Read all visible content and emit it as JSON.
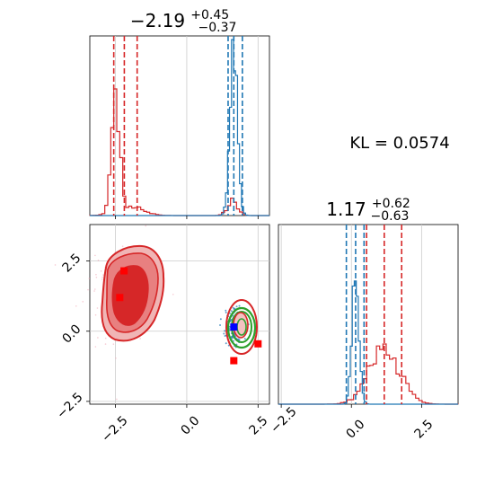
{
  "chart_data": [
    {
      "panel": "marginal-x",
      "type": "histogram",
      "title": {
        "base": "−2.19",
        "sup": "+0.45",
        "sub": "−0.37"
      },
      "xlim": [
        -3.4,
        2.9
      ],
      "series": [
        {
          "color": "#d62728",
          "peaks": [
            [
              -2.5,
              0.14,
              1.0
            ],
            [
              1.6,
              0.18,
              0.12
            ]
          ],
          "quantile_lines": [
            -2.56,
            -2.19,
            -1.74
          ]
        },
        {
          "color": "#1f77b4",
          "peaks": [
            [
              1.65,
              0.13,
              1.45
            ]
          ],
          "quantile_lines": [
            1.45,
            1.65,
            1.95
          ]
        }
      ]
    },
    {
      "panel": "marginal-y",
      "type": "histogram",
      "title": {
        "base": "1.17",
        "sup": "+0.62",
        "sub": "−0.63"
      },
      "xlim": [
        -2.6,
        3.8
      ],
      "series": [
        {
          "color": "#d62728",
          "peaks": [
            [
              1.17,
              0.55,
              0.38
            ]
          ],
          "quantile_lines": [
            0.54,
            1.17,
            1.79
          ]
        },
        {
          "color": "#1f77b4",
          "peaks": [
            [
              0.15,
              0.12,
              1.0
            ]
          ],
          "quantile_lines": [
            -0.18,
            0.15,
            0.45
          ]
        }
      ]
    },
    {
      "panel": "joint",
      "type": "scatter",
      "xlim": [
        -3.4,
        2.9
      ],
      "ylim": [
        -2.6,
        3.8
      ],
      "red_markers": [
        [
          -2.2,
          2.15
        ],
        [
          -2.35,
          1.2
        ],
        [
          1.65,
          -1.05
        ],
        [
          2.5,
          -0.45
        ]
      ],
      "blue_markers": [
        [
          1.65,
          0.15
        ]
      ],
      "x_ticks": [
        "−2.5",
        "0.0",
        "2.5"
      ],
      "y_ticks": [
        "2.5",
        "0.0",
        "−2.5"
      ]
    }
  ],
  "annotation": {
    "kl_text": "KL = 0.0574"
  },
  "bottom_ticks": [
    "−2.5",
    "0.0",
    "2.5"
  ],
  "colors": {
    "red": "#d62728",
    "blue": "#1f77b4",
    "green": "#2ca02c",
    "marker_red": "#ff0000",
    "marker_blue": "#0000ff"
  }
}
